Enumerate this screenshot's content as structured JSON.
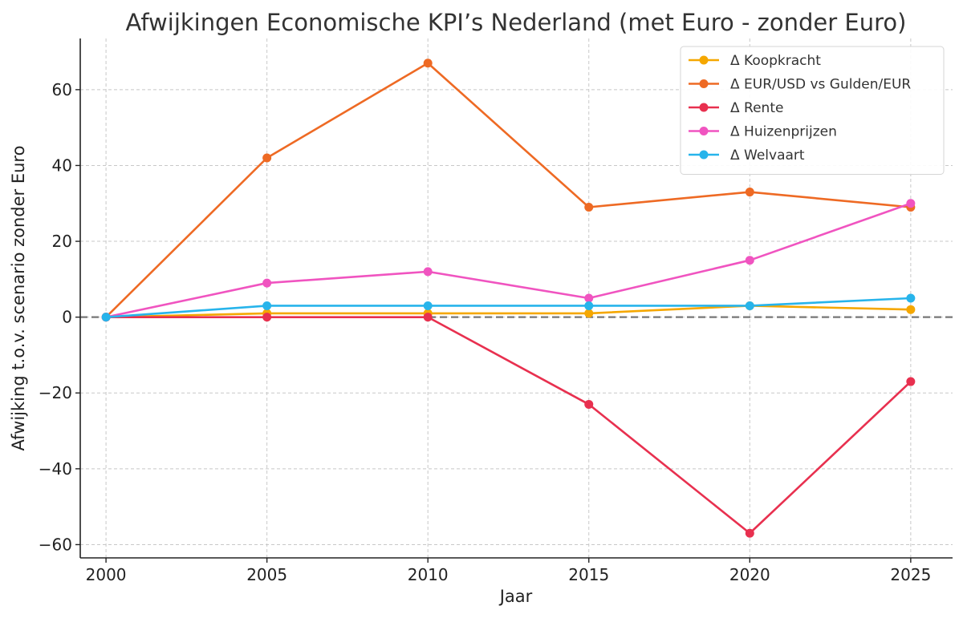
{
  "chart_data": {
    "type": "line",
    "title": "Afwijkingen Economische KPI’s Nederland (met Euro - zonder Euro)",
    "xlabel": "Jaar",
    "ylabel": "Afwijking t.o.v. scenario zonder Euro",
    "x": [
      2000,
      2005,
      2010,
      2015,
      2020,
      2025
    ],
    "xticks": [
      "2000",
      "2005",
      "2010",
      "2015",
      "2020",
      "2025"
    ],
    "yticks": [
      60,
      40,
      20,
      0,
      -20,
      -40,
      -60
    ],
    "ytick_labels": [
      "60",
      "40",
      "20",
      "0",
      "−20",
      "−40",
      "−60"
    ],
    "xlim": [
      1999.2,
      2026.3
    ],
    "ylim": [
      -63.5,
      73.5
    ],
    "grid": true,
    "zero_line": true,
    "legend_position": "top-right",
    "series": [
      {
        "name": "Δ Koopkracht",
        "color": "#f5a700",
        "values": [
          0,
          1,
          1,
          1,
          3,
          2
        ]
      },
      {
        "name": "Δ EUR/USD vs Gulden/EUR",
        "color": "#ee6a24",
        "values": [
          0,
          42,
          67,
          29,
          33,
          29
        ]
      },
      {
        "name": "Δ Rente",
        "color": "#e8304f",
        "values": [
          0,
          0,
          0,
          -23,
          -57,
          -17
        ]
      },
      {
        "name": "Δ Huizenprijzen",
        "color": "#f054c0",
        "values": [
          0,
          9,
          12,
          5,
          15,
          30
        ]
      },
      {
        "name": "Δ Welvaart",
        "color": "#27b4eb",
        "values": [
          0,
          3,
          3,
          3,
          3,
          5
        ]
      }
    ]
  }
}
